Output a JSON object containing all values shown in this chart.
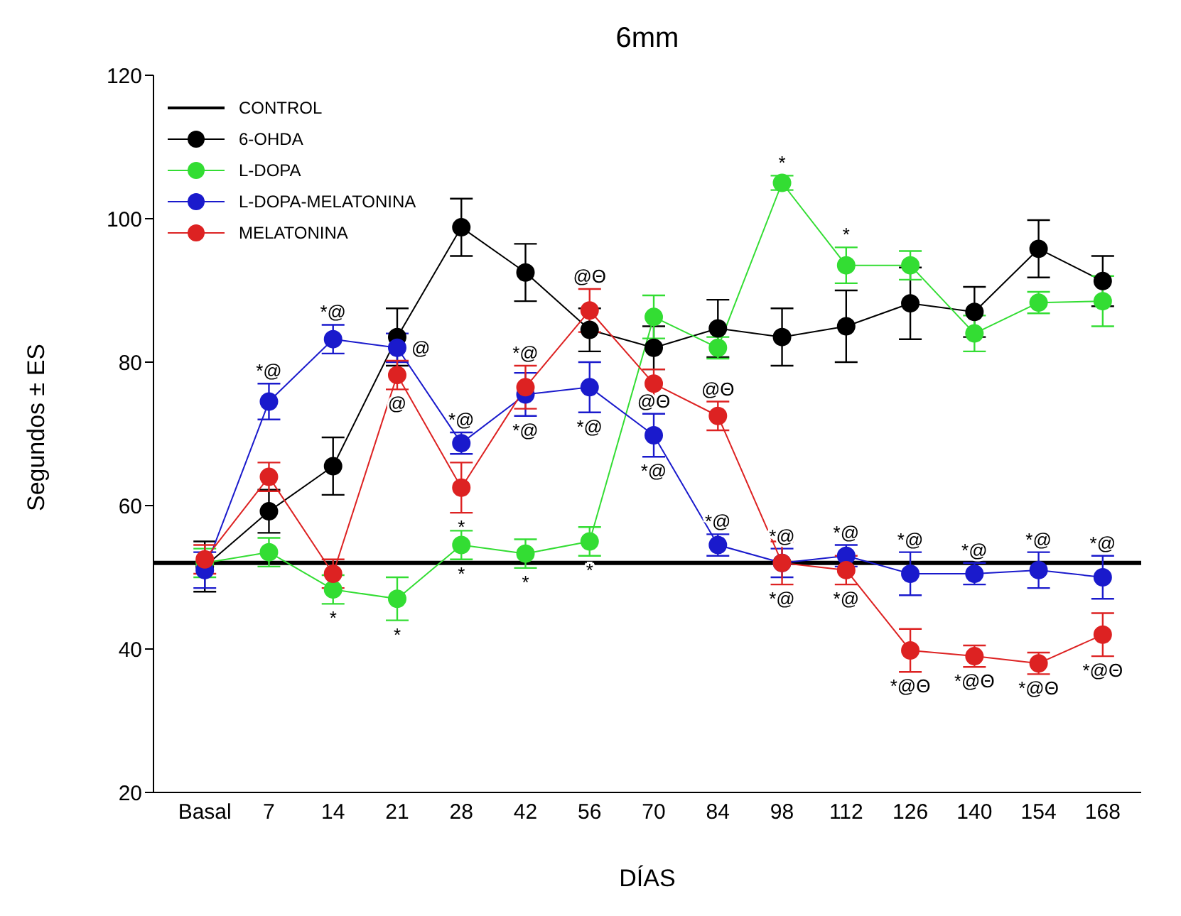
{
  "chart_data": {
    "type": "line",
    "title": "6mm",
    "xlabel": "DÍAS",
    "ylabel": "Segundos ± ES",
    "categories": [
      "Basal",
      "7",
      "14",
      "21",
      "28",
      "42",
      "56",
      "70",
      "84",
      "98",
      "112",
      "126",
      "140",
      "154",
      "168"
    ],
    "ylim": [
      20,
      120
    ],
    "yticks": [
      20,
      40,
      60,
      80,
      100,
      120
    ],
    "grid": false,
    "legend": "top left",
    "marker": "circle",
    "line_style": "solid",
    "ref_lines": [
      {
        "axis": "y",
        "value": 52,
        "label": "CONTROL",
        "color": "#000000"
      }
    ],
    "series": [
      {
        "name": "6-OHDA",
        "color": "#000000",
        "values": [
          51.5,
          59.2,
          65.5,
          83.5,
          98.8,
          92.5,
          84.5,
          82,
          84.7,
          83.5,
          85,
          88.2,
          87,
          95.8,
          91.3
        ],
        "errors": [
          3.5,
          3,
          4,
          4,
          4,
          4,
          3,
          3,
          4,
          4,
          5,
          5,
          3.5,
          4,
          3.5
        ]
      },
      {
        "name": "L-DOPA",
        "color": "#33dd33",
        "values": [
          52,
          53.5,
          48.3,
          47,
          54.5,
          53.3,
          55,
          86.3,
          82,
          105,
          93.5,
          93.5,
          84,
          88.3,
          88.5
        ],
        "errors": [
          2,
          2,
          2,
          3,
          2,
          2,
          2,
          3,
          1.5,
          1,
          2.5,
          2,
          2.5,
          1.5,
          3.5
        ]
      },
      {
        "name": "L-DOPA-MELATONINA",
        "color": "#1a1acc",
        "values": [
          51,
          74.5,
          83.2,
          82,
          68.7,
          75.5,
          76.5,
          69.8,
          54.5,
          52,
          53,
          50.5,
          50.5,
          51,
          50
        ],
        "errors": [
          2.5,
          2.5,
          2,
          2,
          1.5,
          3,
          3.5,
          3,
          1.5,
          2,
          1.5,
          3,
          1.5,
          2.5,
          3
        ]
      },
      {
        "name": "MELATONINA",
        "color": "#dd2222",
        "values": [
          52.5,
          64,
          50.5,
          78.2,
          62.5,
          76.5,
          87.2,
          77,
          72.5,
          52,
          51,
          39.8,
          39,
          38,
          42
        ],
        "errors": [
          2,
          2,
          2,
          2,
          3.5,
          3,
          3,
          2,
          2,
          3,
          2,
          3,
          1.5,
          1.5,
          3
        ]
      }
    ],
    "annotations": [
      {
        "text": "*@",
        "x": "7",
        "y": 77
      },
      {
        "text": "*@",
        "x": "14",
        "y": 85.2
      },
      {
        "text": "*",
        "x": "14",
        "y": 46.3
      },
      {
        "text": "@",
        "x": "21",
        "y": 82
      },
      {
        "text": "@",
        "x": "21",
        "y": 76.2
      },
      {
        "text": "*",
        "x": "21",
        "y": 44
      },
      {
        "text": "*@",
        "x": "28",
        "y": 70.2
      },
      {
        "text": "*",
        "x": "28",
        "y": 59
      },
      {
        "text": "*",
        "x": "28",
        "y": 52.5
      },
      {
        "text": "*@",
        "x": "42",
        "y": 79.5
      },
      {
        "text": "*@",
        "x": "42",
        "y": 72.5
      },
      {
        "text": "*",
        "x": "42",
        "y": 51.3
      },
      {
        "text": "@Θ",
        "x": "56",
        "y": 90.2
      },
      {
        "text": "*@",
        "x": "56",
        "y": 73
      },
      {
        "text": "*",
        "x": "56",
        "y": 53
      },
      {
        "text": "@Θ",
        "x": "70",
        "y": 72.8
      },
      {
        "text": "*@",
        "x": "70",
        "y": 66.8
      },
      {
        "text": "@Θ",
        "x": "84",
        "y": 74.5
      },
      {
        "text": "*@",
        "x": "84",
        "y": 56
      },
      {
        "text": "*",
        "x": "98",
        "y": 106
      },
      {
        "text": "*@",
        "x": "98",
        "y": 54
      },
      {
        "text": "*@",
        "x": "98",
        "y": 49
      },
      {
        "text": "*",
        "x": "112",
        "y": 96
      },
      {
        "text": "*@",
        "x": "112",
        "y": 54.5
      },
      {
        "text": "*@",
        "x": "112",
        "y": 49
      },
      {
        "text": "*@",
        "x": "126",
        "y": 53.5
      },
      {
        "text": "*@Θ",
        "x": "126",
        "y": 36.8
      },
      {
        "text": "*@",
        "x": "140",
        "y": 52
      },
      {
        "text": "*@Θ",
        "x": "140",
        "y": 37.5
      },
      {
        "text": "*@",
        "x": "154",
        "y": 53.5
      },
      {
        "text": "*@Θ",
        "x": "154",
        "y": 36.5
      },
      {
        "text": "*@",
        "x": "168",
        "y": 53
      },
      {
        "text": "*@Θ",
        "x": "168",
        "y": 39
      }
    ]
  }
}
